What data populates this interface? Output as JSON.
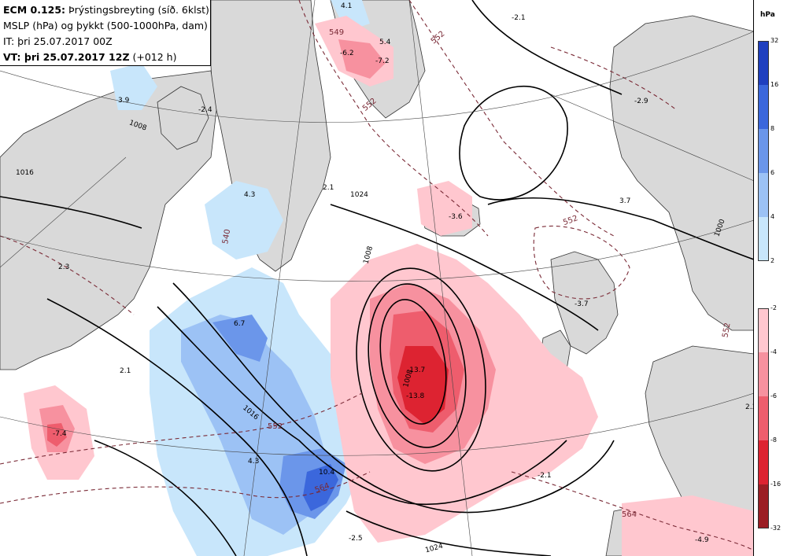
{
  "legend": {
    "model": "ECM 0.125:",
    "title": "Þrýstingsbreyting (síð. 6klst)",
    "line2": "MSLP (hPa) og þykkt (500-1000hPa, dam)",
    "line3": "IT: þri 25.07.2017 00Z",
    "valid_label": "VT: þri 25.07.2017 12Z",
    "lead": "(+012 h)"
  },
  "colorbar": {
    "unit": "hPa",
    "rise": {
      "ticks": [
        "32",
        "16",
        "8",
        "6",
        "4",
        "2"
      ],
      "colors": [
        "#1f3fbf",
        "#3b67dc",
        "#6b96ea",
        "#9cc2f5",
        "#c8e6fb"
      ]
    },
    "fall": {
      "ticks": [
        "-2",
        "-4",
        "-6",
        "-8",
        "-16",
        "-32"
      ],
      "colors": [
        "#ffc7cf",
        "#f7919f",
        "#ee5d6d",
        "#dd2331",
        "#9b1e24"
      ]
    }
  },
  "map_labels": {
    "tendency": [
      "4.1",
      "-2.1",
      "5.4",
      "-6.2",
      "-7.2",
      "3.9",
      "-2.4",
      "-2.9",
      "2.1",
      "4.3",
      "-3.6",
      "3.7",
      "2.3",
      "6.7",
      "-3.7",
      "2.1",
      "-13.7",
      "-13.8",
      "-7.4",
      "4.3",
      "10.4",
      "-2.1",
      "-2.5",
      "2.3",
      "-4.9"
    ],
    "pressure": [
      "1016",
      "1008",
      "1008",
      "1016",
      "1024",
      "1000",
      "1008",
      "1024"
    ],
    "thickness": [
      "549",
      "552",
      "552",
      "540",
      "552",
      "552",
      "564",
      "564",
      "552"
    ]
  },
  "colors": {
    "land": "#d9d9d9",
    "sea": "#ffffff",
    "isobar": "#000000",
    "thickness": "#7a2a36"
  }
}
